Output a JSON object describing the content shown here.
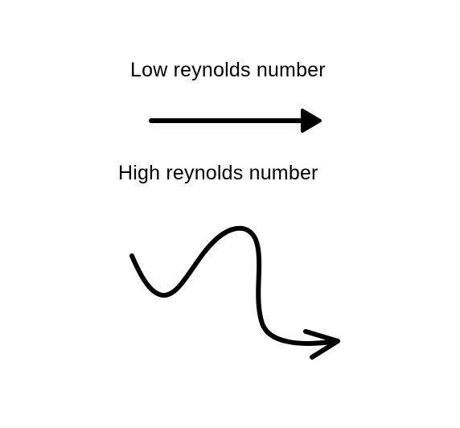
{
  "labels": {
    "low": "Low reynolds number",
    "high": "High reynolds number"
  },
  "arrows": {
    "low": {
      "style": "straight",
      "icon": "straight-arrow-icon"
    },
    "high": {
      "style": "wavy",
      "icon": "wavy-arrow-icon"
    }
  },
  "colors": {
    "ink": "#000000",
    "background": "#ffffff"
  }
}
